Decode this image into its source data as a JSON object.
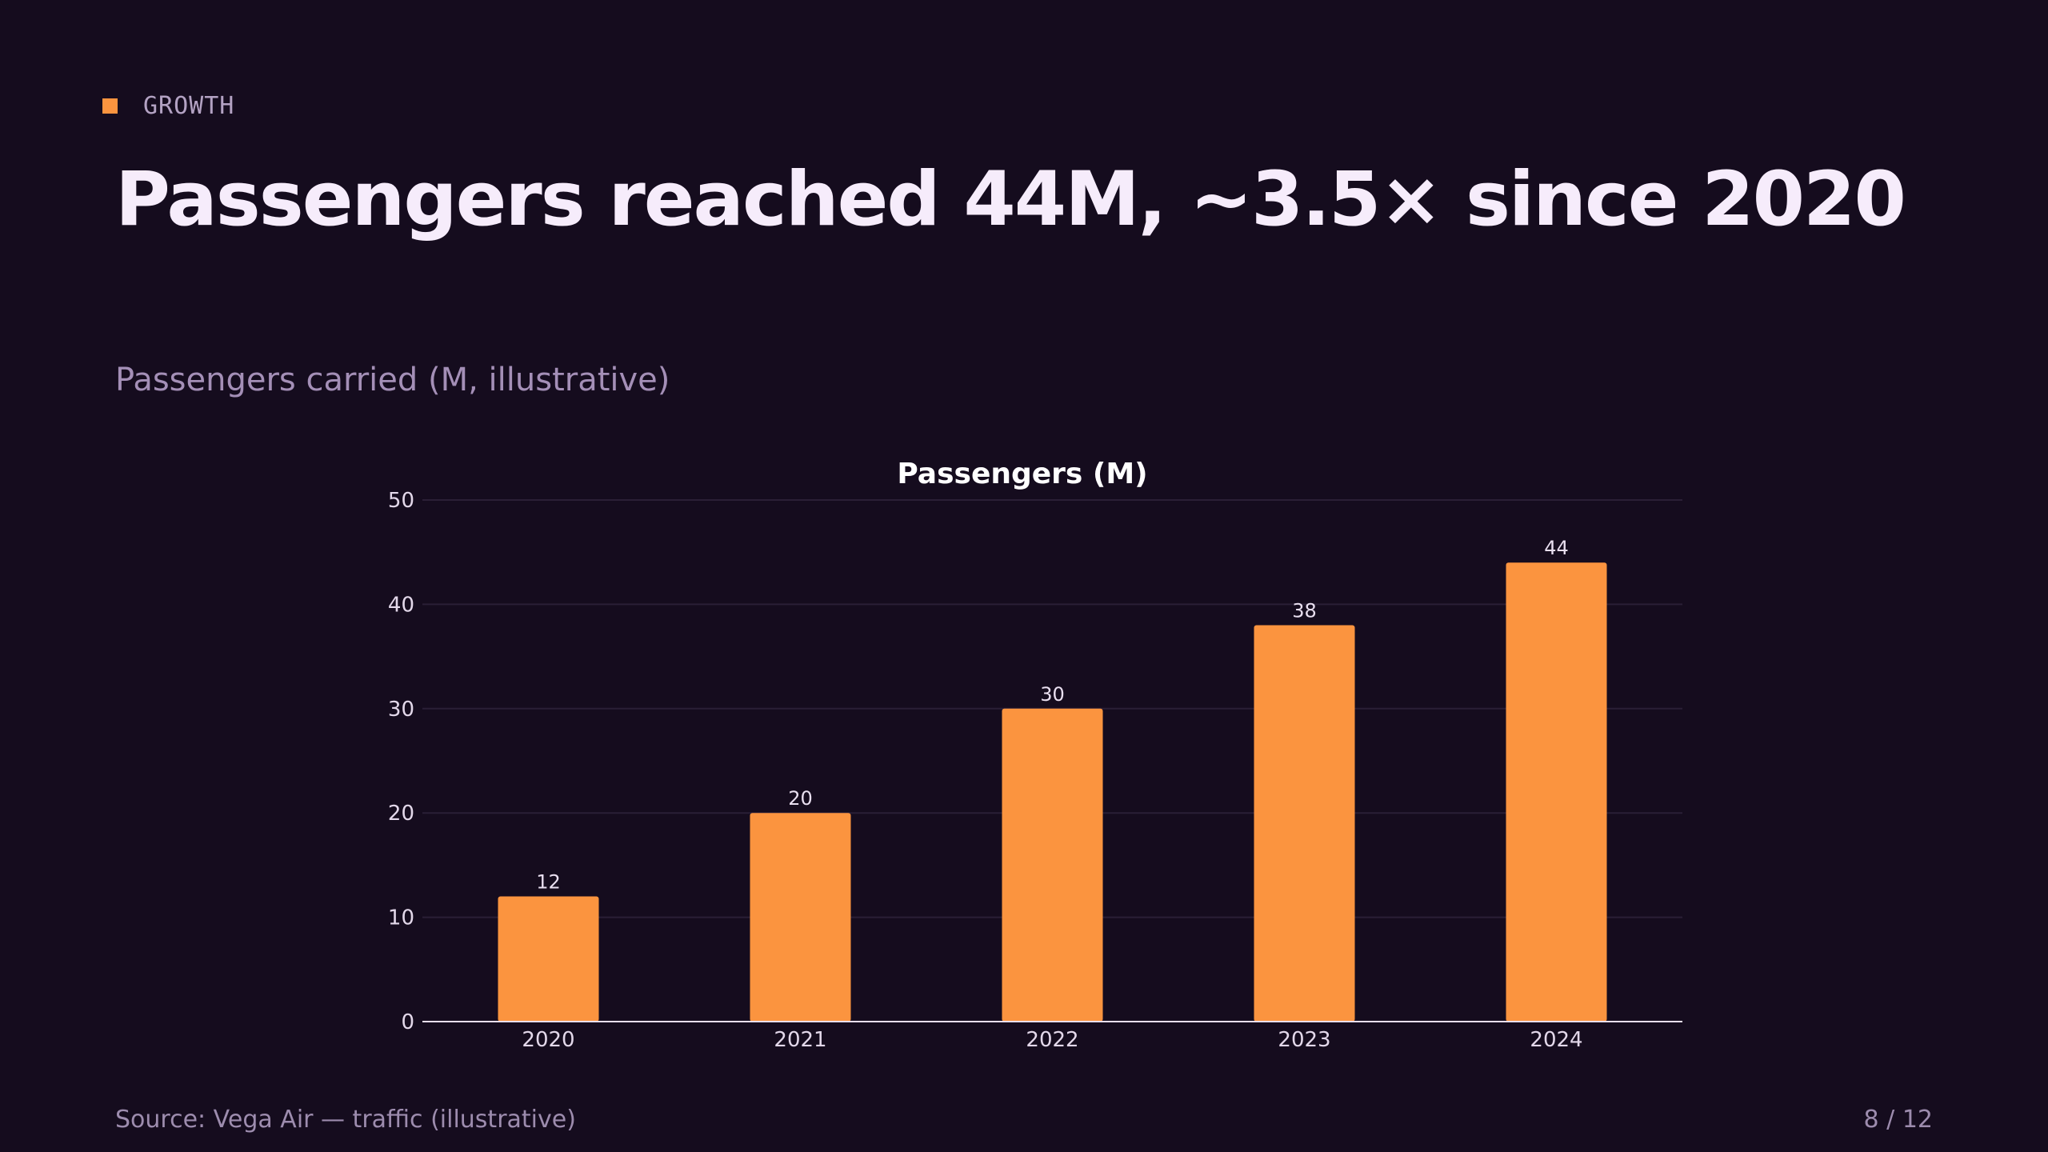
{
  "kicker": {
    "label": "GROWTH",
    "accent_color": "#fb943f"
  },
  "headline": "Passengers reached 44M, ~3.5× since 2020",
  "subtitle": "Passengers carried (M, illustrative)",
  "chart_data": {
    "type": "bar",
    "title": "Passengers (M)",
    "categories": [
      "2020",
      "2021",
      "2022",
      "2023",
      "2024"
    ],
    "values": [
      12,
      20,
      30,
      38,
      44
    ],
    "data_labels": [
      "12",
      "20",
      "30",
      "38",
      "44"
    ],
    "yticks": [
      0,
      10,
      20,
      30,
      40,
      50
    ],
    "ylim": [
      0,
      50
    ],
    "xlabel": "",
    "ylabel": "",
    "grid": true,
    "bar_color": "#fb943f"
  },
  "footer": {
    "source": "Source: Vega Air — traffic (illustrative)",
    "page": "8 / 12"
  }
}
